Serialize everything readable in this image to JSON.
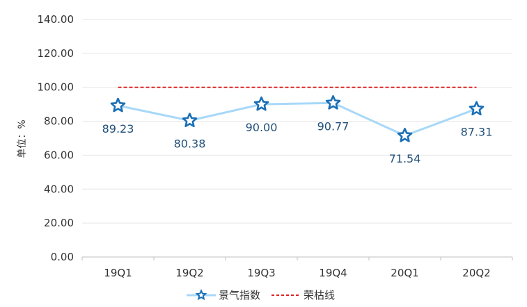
{
  "chart_data": {
    "type": "line",
    "categories": [
      "19Q1",
      "19Q2",
      "19Q3",
      "19Q4",
      "20Q1",
      "20Q2"
    ],
    "series": [
      {
        "name": "景气指数",
        "values": [
          89.23,
          80.38,
          90.0,
          90.77,
          71.54,
          87.31
        ],
        "color": "#a8d8f8",
        "marker_color": "#1a6fb6",
        "marker": "star"
      },
      {
        "name": "荣枯线",
        "values": [
          100,
          100,
          100,
          100,
          100,
          100
        ],
        "color": "#e02020",
        "style": "dashed"
      }
    ],
    "data_labels": [
      "89.23",
      "80.38",
      "90.00",
      "90.77",
      "71.54",
      "87.31"
    ],
    "y_ticks": [
      "0.00",
      "20.00",
      "40.00",
      "60.00",
      "80.00",
      "100.00",
      "120.00",
      "140.00"
    ],
    "ylim": [
      0,
      140
    ],
    "ylabel": "单位：%",
    "xlabel": "",
    "grid": true,
    "legend_position": "bottom",
    "colors": {
      "tick_text": "#333333",
      "data_label": "#1f4e79",
      "grid": "#e6e6e6",
      "axis": "#bfbfbf"
    }
  }
}
